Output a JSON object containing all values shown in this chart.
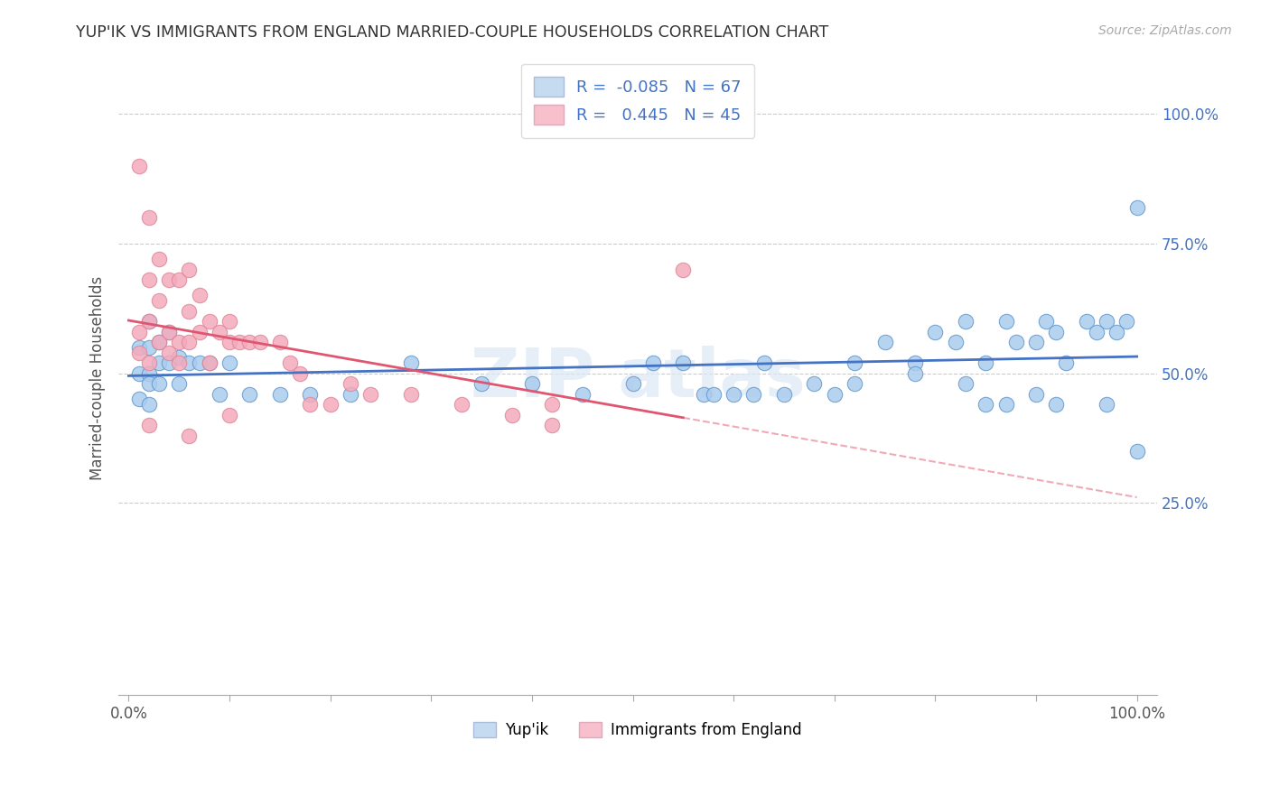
{
  "title": "YUP'IK VS IMMIGRANTS FROM ENGLAND MARRIED-COUPLE HOUSEHOLDS CORRELATION CHART",
  "source": "Source: ZipAtlas.com",
  "ylabel": "Married-couple Households",
  "ytick_positions": [
    0.0,
    0.25,
    0.5,
    0.75,
    1.0
  ],
  "ytick_labels": [
    "",
    "25.0%",
    "50.0%",
    "75.0%",
    "100.0%"
  ],
  "xtick_labels_shown": [
    "0.0%",
    "100.0%"
  ],
  "bg_color": "#ffffff",
  "grid_color": "#cccccc",
  "xlim": [
    -0.01,
    1.02
  ],
  "ylim": [
    -0.12,
    1.1
  ],
  "blue_color": "#aaccee",
  "blue_edge": "#6699cc",
  "blue_line_color": "#4472c4",
  "pink_color": "#f4aabb",
  "pink_edge": "#dd8899",
  "pink_line_color": "#e05570",
  "legend_blue_face": "#c5dcf0",
  "legend_pink_face": "#f8c0cc",
  "R_blue": -0.085,
  "N_blue": 67,
  "R_pink": 0.445,
  "N_pink": 45,
  "blue_x": [
    0.01,
    0.01,
    0.01,
    0.02,
    0.02,
    0.02,
    0.02,
    0.02,
    0.03,
    0.03,
    0.03,
    0.04,
    0.04,
    0.05,
    0.05,
    0.06,
    0.07,
    0.08,
    0.09,
    0.1,
    0.12,
    0.15,
    0.18,
    0.22,
    0.28,
    0.35,
    0.4,
    0.45,
    0.5,
    0.52,
    0.55,
    0.57,
    0.58,
    0.6,
    0.62,
    0.63,
    0.65,
    0.68,
    0.7,
    0.72,
    0.75,
    0.78,
    0.8,
    0.82,
    0.83,
    0.85,
    0.87,
    0.88,
    0.9,
    0.91,
    0.92,
    0.93,
    0.95,
    0.96,
    0.97,
    0.98,
    0.99,
    1.0,
    0.72,
    0.78,
    0.83,
    0.85,
    0.87,
    0.9,
    0.92,
    0.97,
    1.0
  ],
  "blue_y": [
    0.55,
    0.5,
    0.45,
    0.6,
    0.55,
    0.5,
    0.48,
    0.44,
    0.56,
    0.52,
    0.48,
    0.58,
    0.52,
    0.53,
    0.48,
    0.52,
    0.52,
    0.52,
    0.46,
    0.52,
    0.46,
    0.46,
    0.46,
    0.46,
    0.52,
    0.48,
    0.48,
    0.46,
    0.48,
    0.52,
    0.52,
    0.46,
    0.46,
    0.46,
    0.46,
    0.52,
    0.46,
    0.48,
    0.46,
    0.52,
    0.56,
    0.52,
    0.58,
    0.56,
    0.6,
    0.52,
    0.6,
    0.56,
    0.56,
    0.6,
    0.58,
    0.52,
    0.6,
    0.58,
    0.6,
    0.58,
    0.6,
    0.82,
    0.48,
    0.5,
    0.48,
    0.44,
    0.44,
    0.46,
    0.44,
    0.44,
    0.35
  ],
  "pink_x": [
    0.01,
    0.01,
    0.01,
    0.02,
    0.02,
    0.02,
    0.02,
    0.03,
    0.03,
    0.03,
    0.04,
    0.04,
    0.04,
    0.05,
    0.05,
    0.05,
    0.06,
    0.06,
    0.06,
    0.07,
    0.07,
    0.08,
    0.08,
    0.09,
    0.1,
    0.1,
    0.11,
    0.12,
    0.13,
    0.15,
    0.16,
    0.17,
    0.18,
    0.2,
    0.22,
    0.24,
    0.28,
    0.33,
    0.38,
    0.42,
    0.42,
    0.55,
    0.02,
    0.06,
    0.1
  ],
  "pink_y": [
    0.9,
    0.58,
    0.54,
    0.8,
    0.68,
    0.6,
    0.52,
    0.72,
    0.64,
    0.56,
    0.68,
    0.58,
    0.54,
    0.68,
    0.56,
    0.52,
    0.7,
    0.62,
    0.56,
    0.65,
    0.58,
    0.6,
    0.52,
    0.58,
    0.6,
    0.56,
    0.56,
    0.56,
    0.56,
    0.56,
    0.52,
    0.5,
    0.44,
    0.44,
    0.48,
    0.46,
    0.46,
    0.44,
    0.42,
    0.44,
    0.4,
    0.7,
    0.4,
    0.38,
    0.42
  ],
  "num_xticks": 10
}
